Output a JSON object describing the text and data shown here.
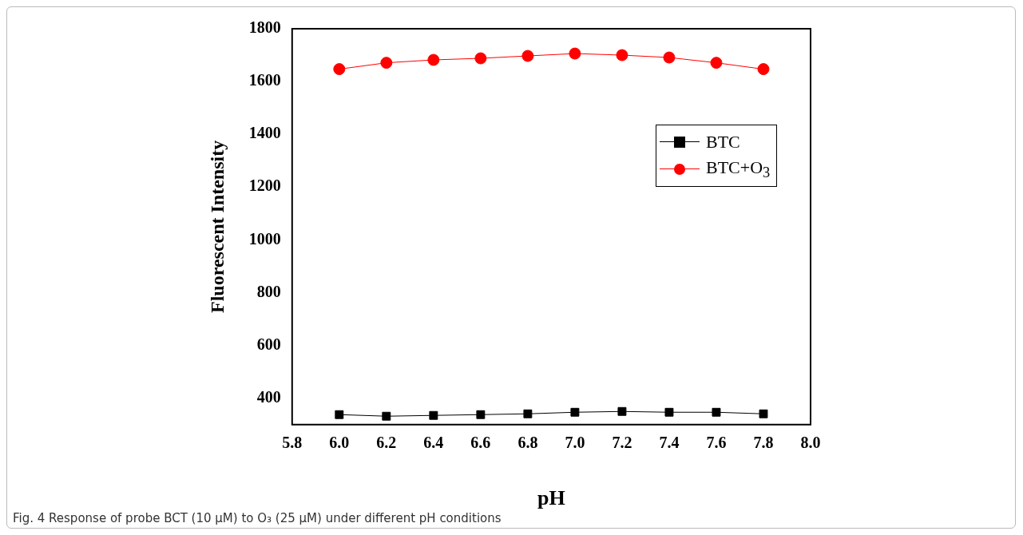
{
  "chart_data": {
    "type": "line",
    "xlabel": "pH",
    "ylabel": "Fluorescent Intensity",
    "x": [
      6.0,
      6.2,
      6.4,
      6.6,
      6.8,
      7.0,
      7.2,
      7.4,
      7.6,
      7.8
    ],
    "series": [
      {
        "name": "BTC",
        "color": "#000000",
        "marker": "square",
        "values": [
          338,
          332,
          335,
          338,
          341,
          347,
          350,
          347,
          347,
          341
        ]
      },
      {
        "name": "BTC+O$_{3}$",
        "color": "#ff0000",
        "marker": "circle",
        "values": [
          1647,
          1671,
          1682,
          1688,
          1697,
          1706,
          1700,
          1691,
          1671,
          1647
        ]
      }
    ],
    "xlim": [
      5.8,
      8.0
    ],
    "xticks": [
      {
        "value": 5.8,
        "label": "5.8"
      },
      {
        "value": 6.0,
        "label": "6.0"
      },
      {
        "value": 6.2,
        "label": "6.2"
      },
      {
        "value": 6.4,
        "label": "6.4"
      },
      {
        "value": 6.6,
        "label": "6.6"
      },
      {
        "value": 6.8,
        "label": "6.8"
      },
      {
        "value": 7.0,
        "label": "7.0"
      },
      {
        "value": 7.2,
        "label": "7.2"
      },
      {
        "value": 7.4,
        "label": "7.4"
      },
      {
        "value": 7.6,
        "label": "7.6"
      },
      {
        "value": 7.8,
        "label": "7.8"
      },
      {
        "value": 8.0,
        "label": "8.0"
      }
    ],
    "ylim": [
      300,
      1800
    ],
    "yticks": [
      400,
      600,
      800,
      1000,
      1200,
      1400,
      1600,
      1800
    ],
    "grid": false,
    "legend": "top right",
    "annotations": [
      "Fig. 4 Response of probe BCT (10 μM) to O₃ (25 μM) under different pH conditions"
    ]
  }
}
